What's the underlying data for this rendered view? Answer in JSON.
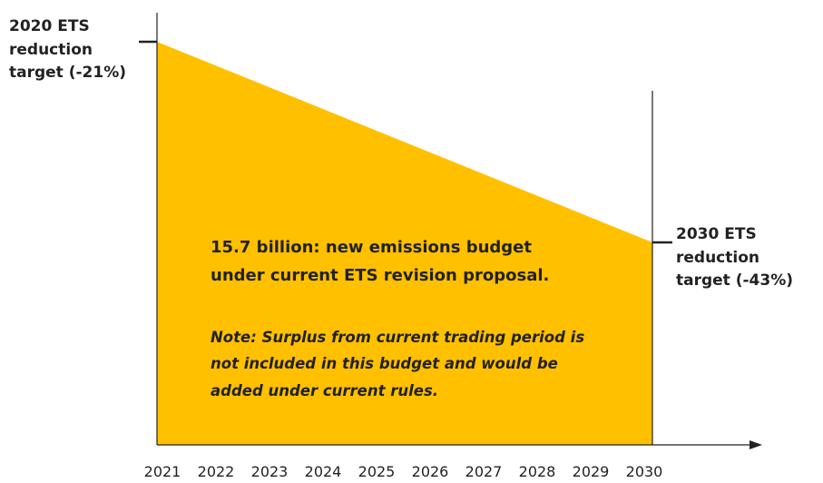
{
  "chart_data": {
    "type": "area",
    "x": [
      2021,
      2030
    ],
    "y": [
      -21,
      -43
    ],
    "series": [
      {
        "x": [
          2021,
          2030
        ],
        "y": [
          -21,
          -43
        ]
      }
    ],
    "x_ticks": [
      "2021",
      "2022",
      "2023",
      "2024",
      "2025",
      "2026",
      "2027",
      "2028",
      "2029",
      "2030"
    ],
    "start_annotation": [
      "2020 ETS",
      "reduction",
      "target (-21%)"
    ],
    "end_annotation": [
      "2030 ETS",
      "reduction",
      "target (-43%)"
    ],
    "budget_text": [
      "15.7 billion:  new emissions budget",
      "under current ETS  revision proposal."
    ],
    "note_text": [
      "Note: Surplus  from  current  trading  period is",
      "not included in this budget and would be",
      "added under current rules."
    ],
    "fill_color": "#FFC000",
    "grid": false
  }
}
